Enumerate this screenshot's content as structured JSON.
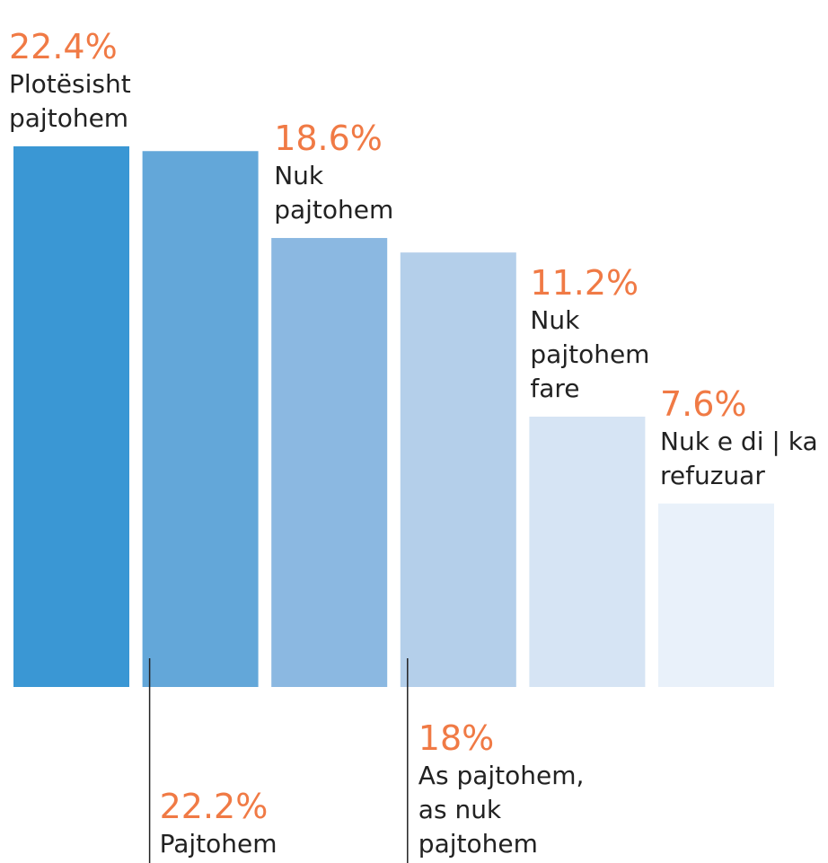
{
  "chart_data": {
    "type": "bar",
    "categories": [
      "Plotësisht pajtohem",
      "Pajtohem",
      "Nuk pajtohem",
      "As pajtohem, as nuk pajtohem",
      "Nuk pajtohem fare",
      "Nuk e di | ka refuzuar"
    ],
    "values": [
      22.4,
      22.2,
      18.6,
      18,
      11.2,
      7.6
    ],
    "value_labels": [
      "22.4%",
      "22.2%",
      "18.6%",
      "18%",
      "11.2%",
      "7.6%"
    ],
    "colors": [
      "#3a97d4",
      "#63a7d9",
      "#8bb8e1",
      "#b4cfea",
      "#d6e4f4",
      "#e9f1fa"
    ]
  }
}
